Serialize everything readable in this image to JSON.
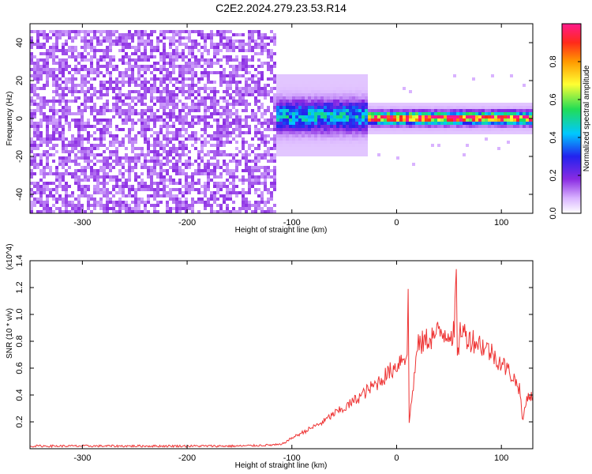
{
  "chart_data": [
    {
      "type": "heatmap",
      "title": "C2E2.2024.279.23.53.R14",
      "xlabel": "Height of straight line (km)",
      "ylabel": "Frequency (Hz)",
      "xlim": [
        -350,
        130
      ],
      "ylim": [
        -50,
        50
      ],
      "xticks": [
        -300,
        -200,
        -100,
        0,
        100
      ],
      "yticks": [
        -40,
        -20,
        0,
        20,
        40
      ],
      "colorbar": {
        "label": "Normalized spectral amplitude",
        "range": [
          0,
          1
        ],
        "ticks": [
          "0.0",
          "0.2",
          "0.4",
          "0.6",
          "0.8"
        ],
        "colormap": "white-violet-blue-cyan-green-yellow-orange-red-pink"
      },
      "regions": [
        {
          "name": "noise",
          "x_range": [
            -350,
            -115
          ],
          "freq_range": [
            -50,
            48
          ],
          "amplitude": 0.1
        },
        {
          "name": "signal-broad",
          "x_range": [
            -115,
            -30
          ],
          "freq_center": 2,
          "freq_width": 10,
          "amplitude": 0.4
        },
        {
          "name": "signal-narrow",
          "x_range": [
            -30,
            130
          ],
          "freq_center": 1,
          "freq_width": 4,
          "amplitude": 0.9
        }
      ]
    },
    {
      "type": "line",
      "xlabel": "Height of straight line (km)",
      "ylabel": "SNR (10 * v/v)",
      "scale_label": "(x10^4)",
      "xlim": [
        -350,
        130
      ],
      "ylim": [
        0,
        1.4
      ],
      "xticks": [
        -300,
        -200,
        -100,
        0,
        100
      ],
      "yticks": [
        "0.2",
        "0.4",
        "0.6",
        "0.8",
        "1.0",
        "1.2",
        "1.4"
      ],
      "series": [
        {
          "color": "#ee3333",
          "x": [
            -350,
            -300,
            -250,
            -200,
            -150,
            -110,
            -100,
            -90,
            -80,
            -70,
            -60,
            -50,
            -40,
            -30,
            -20,
            -10,
            0,
            5,
            10,
            11,
            12,
            20,
            30,
            40,
            50,
            55,
            57,
            58,
            60,
            62,
            65,
            70,
            80,
            90,
            100,
            110,
            115,
            118,
            120,
            125,
            130
          ],
          "y": [
            0.02,
            0.02,
            0.02,
            0.02,
            0.02,
            0.03,
            0.08,
            0.12,
            0.16,
            0.2,
            0.26,
            0.3,
            0.36,
            0.42,
            0.48,
            0.55,
            0.62,
            0.68,
            0.7,
            1.1,
            0.2,
            0.76,
            0.82,
            0.86,
            0.87,
            0.85,
            1.35,
            0.62,
            0.86,
            0.9,
            0.85,
            0.82,
            0.78,
            0.72,
            0.64,
            0.55,
            0.48,
            0.44,
            0.2,
            0.4,
            0.38
          ]
        }
      ]
    }
  ]
}
